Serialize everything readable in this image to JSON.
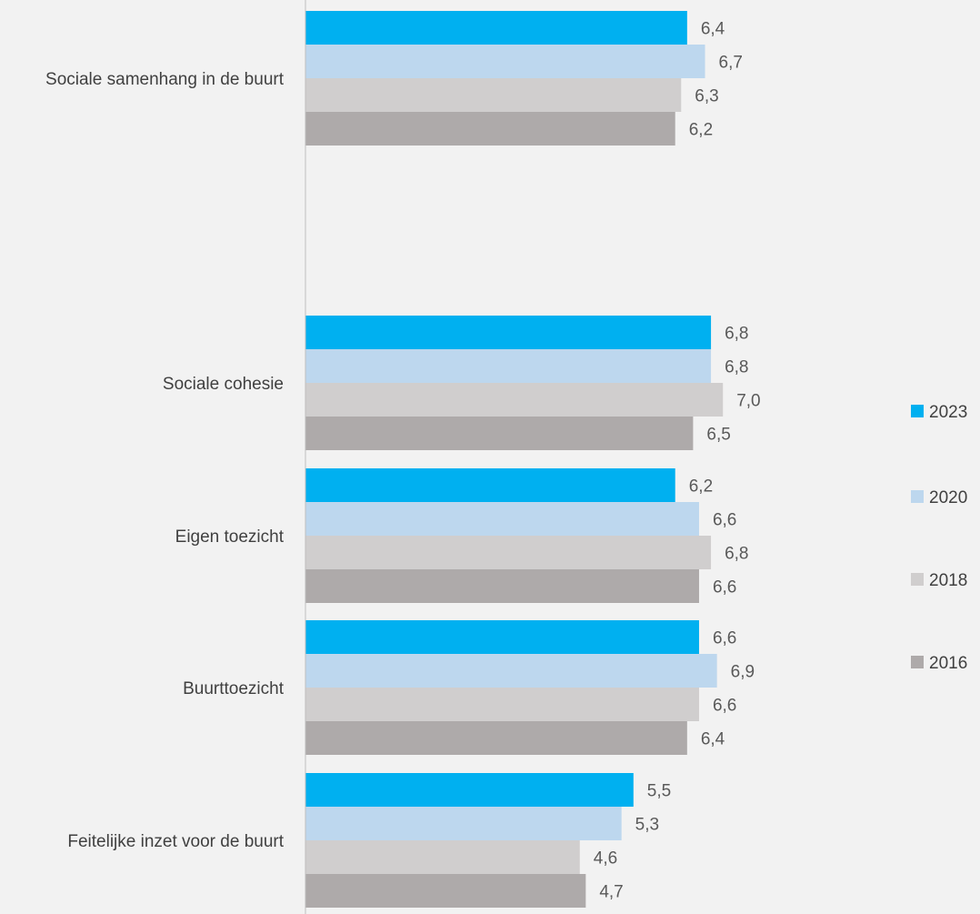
{
  "chart_data": {
    "type": "bar",
    "orientation": "horizontal",
    "categories": [
      "Sociale samenhang in de buurt",
      "Sociale cohesie",
      "Eigen toezicht",
      "Buurttoezicht",
      "Feitelijke inzet voor de buurt"
    ],
    "series": [
      {
        "name": "2023",
        "color": "#00b0f0",
        "values": [
          6.4,
          6.8,
          6.2,
          6.6,
          5.5
        ],
        "labels": [
          "6,4",
          "6,8",
          "6,2",
          "6,6",
          "5,5"
        ]
      },
      {
        "name": "2020",
        "color": "#bdd7ee",
        "values": [
          6.7,
          6.8,
          6.6,
          6.9,
          5.3
        ],
        "labels": [
          "6,7",
          "6,8",
          "6,6",
          "6,9",
          "5,3"
        ]
      },
      {
        "name": "2018",
        "color": "#d0cece",
        "values": [
          6.3,
          7.0,
          6.8,
          6.6,
          4.6
        ],
        "labels": [
          "6,3",
          "7,0",
          "6,8",
          "6,6",
          "4,6"
        ]
      },
      {
        "name": "2016",
        "color": "#aeaaaa",
        "values": [
          6.2,
          6.5,
          6.6,
          6.4,
          4.7
        ],
        "labels": [
          "6,2",
          "6,5",
          "6,6",
          "6,4",
          "4,7"
        ]
      }
    ],
    "xlim": [
      0,
      10
    ],
    "grid": false,
    "legend_position": "right",
    "title": "",
    "xlabel": "",
    "ylabel": ""
  },
  "colors": {
    "background": "#f2f2f2",
    "axis": "#bfbfbf",
    "text": "#404040",
    "data_label": "#595959"
  }
}
